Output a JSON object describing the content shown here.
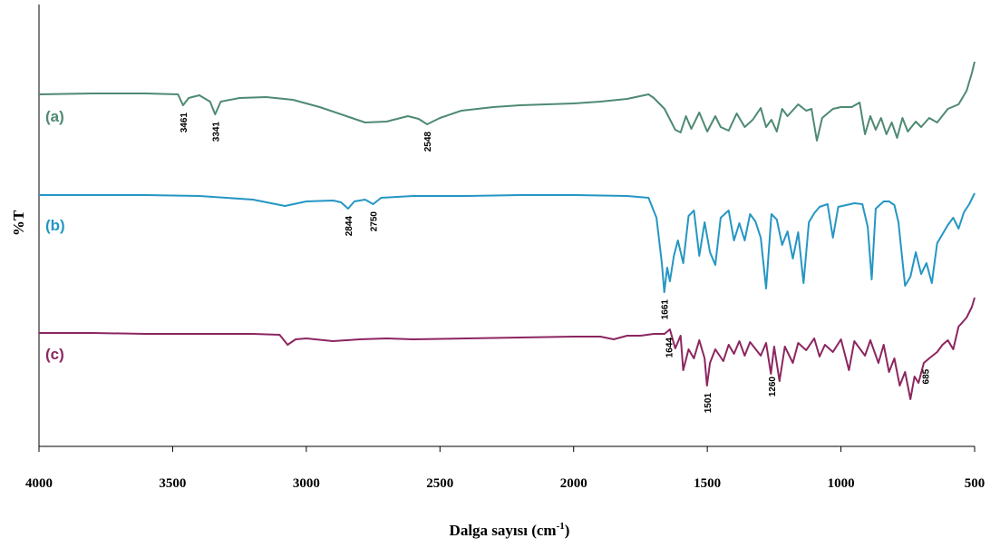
{
  "chart_data": {
    "type": "line",
    "title": "",
    "xlabel": "Dalga sayısı (cm",
    "xlabel_sup": "-1",
    "xlabel_end": ")",
    "ylabel": "%T",
    "xlim": [
      4000,
      500
    ],
    "x_reversed": true,
    "x_ticks": [
      4000,
      3500,
      3000,
      2500,
      2000,
      1500,
      1000,
      500
    ],
    "grid": false,
    "series": [
      {
        "name": "(a)",
        "color": "#4e8a72",
        "peaks": [
          3461,
          3341,
          2548
        ],
        "points": [
          [
            4000,
            104
          ],
          [
            3800,
            103
          ],
          [
            3600,
            103
          ],
          [
            3480,
            104
          ],
          [
            3461,
            116
          ],
          [
            3440,
            108
          ],
          [
            3400,
            105
          ],
          [
            3360,
            112
          ],
          [
            3341,
            126
          ],
          [
            3320,
            112
          ],
          [
            3250,
            108
          ],
          [
            3150,
            107
          ],
          [
            3050,
            110
          ],
          [
            2950,
            118
          ],
          [
            2850,
            128
          ],
          [
            2780,
            135
          ],
          [
            2700,
            134
          ],
          [
            2620,
            128
          ],
          [
            2580,
            131
          ],
          [
            2548,
            137
          ],
          [
            2500,
            130
          ],
          [
            2420,
            122
          ],
          [
            2300,
            118
          ],
          [
            2200,
            116
          ],
          [
            2100,
            115
          ],
          [
            2000,
            114
          ],
          [
            1900,
            112
          ],
          [
            1800,
            109
          ],
          [
            1720,
            104
          ],
          [
            1700,
            108
          ],
          [
            1660,
            120
          ],
          [
            1620,
            143
          ],
          [
            1600,
            146
          ],
          [
            1580,
            128
          ],
          [
            1560,
            142
          ],
          [
            1530,
            124
          ],
          [
            1500,
            145
          ],
          [
            1470,
            128
          ],
          [
            1450,
            140
          ],
          [
            1420,
            144
          ],
          [
            1390,
            125
          ],
          [
            1360,
            140
          ],
          [
            1330,
            132
          ],
          [
            1300,
            119
          ],
          [
            1280,
            140
          ],
          [
            1260,
            132
          ],
          [
            1240,
            145
          ],
          [
            1220,
            120
          ],
          [
            1200,
            128
          ],
          [
            1160,
            115
          ],
          [
            1130,
            122
          ],
          [
            1110,
            120
          ],
          [
            1090,
            155
          ],
          [
            1070,
            130
          ],
          [
            1050,
            125
          ],
          [
            1030,
            120
          ],
          [
            1000,
            118
          ],
          [
            960,
            118
          ],
          [
            930,
            113
          ],
          [
            910,
            148
          ],
          [
            890,
            128
          ],
          [
            870,
            143
          ],
          [
            850,
            130
          ],
          [
            830,
            148
          ],
          [
            810,
            135
          ],
          [
            790,
            152
          ],
          [
            770,
            130
          ],
          [
            750,
            145
          ],
          [
            720,
            134
          ],
          [
            700,
            140
          ],
          [
            670,
            130
          ],
          [
            640,
            135
          ],
          [
            600,
            120
          ],
          [
            560,
            115
          ],
          [
            530,
            100
          ],
          [
            510,
            80
          ],
          [
            500,
            68
          ]
        ]
      },
      {
        "name": "(b)",
        "color": "#2596c4",
        "peaks": [
          2844,
          2750,
          1661
        ],
        "points": [
          [
            4000,
            215
          ],
          [
            3800,
            215
          ],
          [
            3600,
            215
          ],
          [
            3400,
            216
          ],
          [
            3200,
            220
          ],
          [
            3080,
            227
          ],
          [
            3000,
            222
          ],
          [
            2900,
            221
          ],
          [
            2870,
            223
          ],
          [
            2844,
            230
          ],
          [
            2820,
            222
          ],
          [
            2780,
            220
          ],
          [
            2750,
            225
          ],
          [
            2720,
            218
          ],
          [
            2600,
            216
          ],
          [
            2400,
            216
          ],
          [
            2200,
            215
          ],
          [
            2000,
            215
          ],
          [
            1800,
            216
          ],
          [
            1720,
            218
          ],
          [
            1690,
            240
          ],
          [
            1670,
            290
          ],
          [
            1661,
            322
          ],
          [
            1650,
            295
          ],
          [
            1640,
            310
          ],
          [
            1625,
            282
          ],
          [
            1610,
            265
          ],
          [
            1590,
            290
          ],
          [
            1570,
            238
          ],
          [
            1550,
            232
          ],
          [
            1530,
            282
          ],
          [
            1510,
            245
          ],
          [
            1490,
            278
          ],
          [
            1470,
            292
          ],
          [
            1450,
            240
          ],
          [
            1420,
            232
          ],
          [
            1400,
            265
          ],
          [
            1380,
            246
          ],
          [
            1360,
            265
          ],
          [
            1340,
            236
          ],
          [
            1320,
            244
          ],
          [
            1300,
            262
          ],
          [
            1280,
            318
          ],
          [
            1260,
            236
          ],
          [
            1240,
            242
          ],
          [
            1220,
            270
          ],
          [
            1200,
            255
          ],
          [
            1180,
            285
          ],
          [
            1160,
            256
          ],
          [
            1140,
            312
          ],
          [
            1120,
            245
          ],
          [
            1100,
            235
          ],
          [
            1080,
            228
          ],
          [
            1050,
            225
          ],
          [
            1030,
            262
          ],
          [
            1010,
            228
          ],
          [
            980,
            226
          ],
          [
            950,
            224
          ],
          [
            920,
            225
          ],
          [
            900,
            250
          ],
          [
            885,
            308
          ],
          [
            870,
            230
          ],
          [
            840,
            222
          ],
          [
            820,
            222
          ],
          [
            800,
            226
          ],
          [
            785,
            245
          ],
          [
            760,
            315
          ],
          [
            740,
            305
          ],
          [
            720,
            278
          ],
          [
            700,
            302
          ],
          [
            680,
            290
          ],
          [
            660,
            312
          ],
          [
            640,
            268
          ],
          [
            620,
            258
          ],
          [
            600,
            248
          ],
          [
            580,
            240
          ],
          [
            560,
            252
          ],
          [
            540,
            234
          ],
          [
            520,
            225
          ],
          [
            500,
            213
          ]
        ]
      },
      {
        "name": "(c)",
        "color": "#8c2660",
        "peaks": [
          1644,
          1501,
          1260,
          685
        ],
        "points": [
          [
            4000,
            367
          ],
          [
            3800,
            367
          ],
          [
            3600,
            368
          ],
          [
            3400,
            368
          ],
          [
            3200,
            368
          ],
          [
            3100,
            369
          ],
          [
            3070,
            380
          ],
          [
            3040,
            374
          ],
          [
            3000,
            373
          ],
          [
            2900,
            376
          ],
          [
            2800,
            374
          ],
          [
            2700,
            373
          ],
          [
            2600,
            374
          ],
          [
            2400,
            373
          ],
          [
            2200,
            372
          ],
          [
            2000,
            371
          ],
          [
            1900,
            371
          ],
          [
            1850,
            374
          ],
          [
            1800,
            370
          ],
          [
            1750,
            370
          ],
          [
            1700,
            368
          ],
          [
            1660,
            368
          ],
          [
            1640,
            363
          ],
          [
            1620,
            384
          ],
          [
            1600,
            370
          ],
          [
            1590,
            408
          ],
          [
            1570,
            385
          ],
          [
            1550,
            395
          ],
          [
            1530,
            375
          ],
          [
            1510,
            395
          ],
          [
            1501,
            425
          ],
          [
            1490,
            400
          ],
          [
            1470,
            385
          ],
          [
            1440,
            398
          ],
          [
            1420,
            380
          ],
          [
            1400,
            390
          ],
          [
            1380,
            376
          ],
          [
            1360,
            392
          ],
          [
            1340,
            377
          ],
          [
            1300,
            392
          ],
          [
            1280,
            378
          ],
          [
            1262,
            412
          ],
          [
            1250,
            382
          ],
          [
            1230,
            420
          ],
          [
            1210,
            382
          ],
          [
            1180,
            400
          ],
          [
            1160,
            378
          ],
          [
            1130,
            386
          ],
          [
            1100,
            373
          ],
          [
            1080,
            393
          ],
          [
            1060,
            380
          ],
          [
            1030,
            388
          ],
          [
            1000,
            374
          ],
          [
            970,
            408
          ],
          [
            950,
            376
          ],
          [
            930,
            384
          ],
          [
            910,
            392
          ],
          [
            890,
            375
          ],
          [
            860,
            400
          ],
          [
            840,
            380
          ],
          [
            820,
            410
          ],
          [
            800,
            395
          ],
          [
            780,
            425
          ],
          [
            760,
            410
          ],
          [
            740,
            440
          ],
          [
            725,
            415
          ],
          [
            710,
            422
          ],
          [
            690,
            400
          ],
          [
            670,
            395
          ],
          [
            640,
            388
          ],
          [
            620,
            380
          ],
          [
            600,
            375
          ],
          [
            580,
            385
          ],
          [
            560,
            360
          ],
          [
            530,
            350
          ],
          [
            510,
            338
          ],
          [
            500,
            328
          ]
        ]
      }
    ]
  }
}
